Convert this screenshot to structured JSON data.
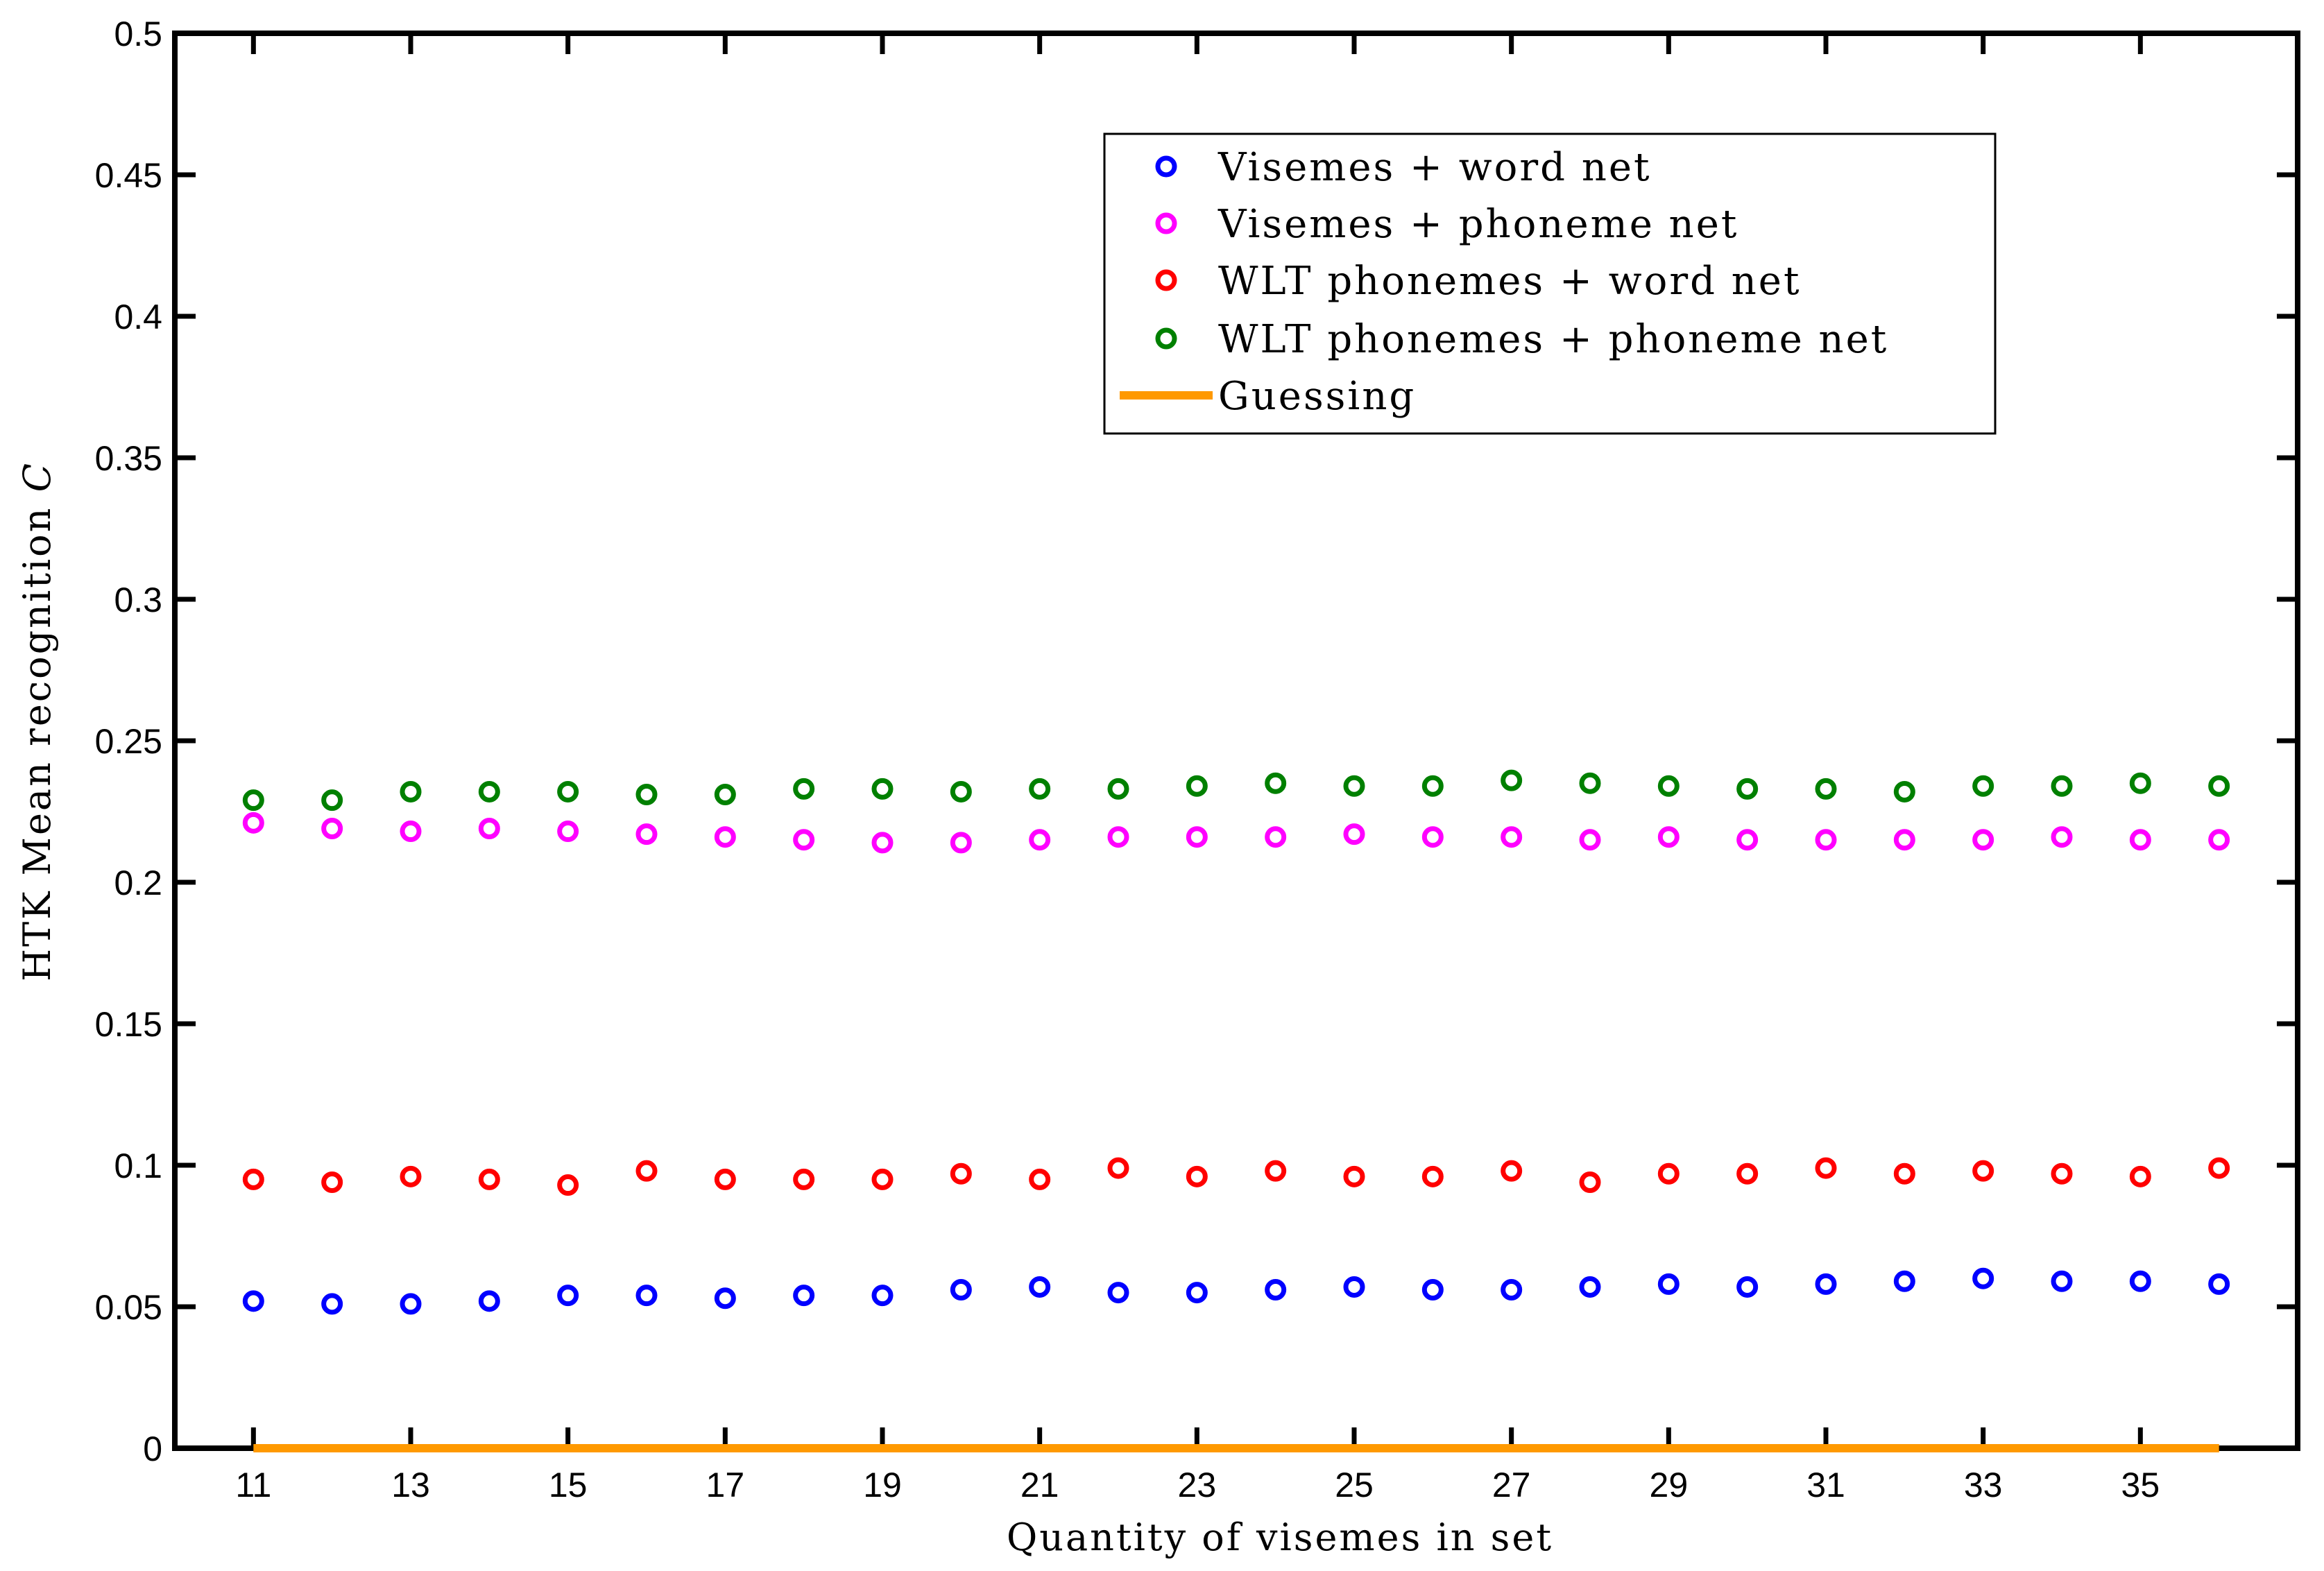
{
  "chart_data": {
    "type": "scatter",
    "title": "",
    "xlabel": "Quantity of visemes in set",
    "ylabel": "HTK Mean recognition ",
    "ylabel_symbol": "C",
    "xlim": [
      10,
      37
    ],
    "ylim": [
      0,
      0.5
    ],
    "x_ticks": [
      11,
      13,
      15,
      17,
      19,
      21,
      23,
      25,
      27,
      29,
      31,
      33,
      35
    ],
    "y_ticks": [
      0,
      0.05,
      0.1,
      0.15,
      0.2,
      0.25,
      0.3,
      0.35,
      0.4,
      0.45,
      0.5
    ],
    "y_tick_labels": [
      "0",
      "0.05",
      "0.1",
      "0.15",
      "0.2",
      "0.25",
      "0.3",
      "0.35",
      "0.4",
      "0.45",
      "0.5"
    ],
    "x": [
      11,
      12,
      13,
      14,
      15,
      16,
      17,
      18,
      19,
      20,
      21,
      22,
      23,
      24,
      25,
      26,
      27,
      28,
      29,
      30,
      31,
      32,
      33,
      34,
      35,
      36
    ],
    "legend_position": "top-right",
    "series": [
      {
        "name": "Visemes + word net",
        "color": "#0000ff",
        "marker": "circle",
        "values": [
          0.052,
          0.051,
          0.051,
          0.052,
          0.054,
          0.054,
          0.053,
          0.054,
          0.054,
          0.056,
          0.057,
          0.055,
          0.055,
          0.056,
          0.057,
          0.056,
          0.056,
          0.057,
          0.058,
          0.057,
          0.058,
          0.059,
          0.06,
          0.059,
          0.059,
          0.058
        ]
      },
      {
        "name": "Visemes + phoneme net",
        "color": "#ff00ff",
        "marker": "circle",
        "values": [
          0.221,
          0.219,
          0.218,
          0.219,
          0.218,
          0.217,
          0.216,
          0.215,
          0.214,
          0.214,
          0.215,
          0.216,
          0.216,
          0.216,
          0.217,
          0.216,
          0.216,
          0.215,
          0.216,
          0.215,
          0.215,
          0.215,
          0.215,
          0.216,
          0.215,
          0.215
        ]
      },
      {
        "name": "WLT phonemes + word net",
        "color": "#ff0000",
        "marker": "circle",
        "values": [
          0.095,
          0.094,
          0.096,
          0.095,
          0.093,
          0.098,
          0.095,
          0.095,
          0.095,
          0.097,
          0.095,
          0.099,
          0.096,
          0.098,
          0.096,
          0.096,
          0.098,
          0.094,
          0.097,
          0.097,
          0.099,
          0.097,
          0.098,
          0.097,
          0.096,
          0.099
        ]
      },
      {
        "name": "WLT phonemes + phoneme net",
        "color": "#008000",
        "marker": "circle",
        "values": [
          0.229,
          0.229,
          0.232,
          0.232,
          0.232,
          0.231,
          0.231,
          0.233,
          0.233,
          0.232,
          0.233,
          0.233,
          0.234,
          0.235,
          0.234,
          0.234,
          0.236,
          0.235,
          0.234,
          0.233,
          0.233,
          0.232,
          0.234,
          0.234,
          0.235,
          0.234
        ]
      },
      {
        "name": "Guessing",
        "color": "#ff9900",
        "marker": "line",
        "x_range": [
          11,
          36
        ],
        "value": 0
      }
    ]
  }
}
